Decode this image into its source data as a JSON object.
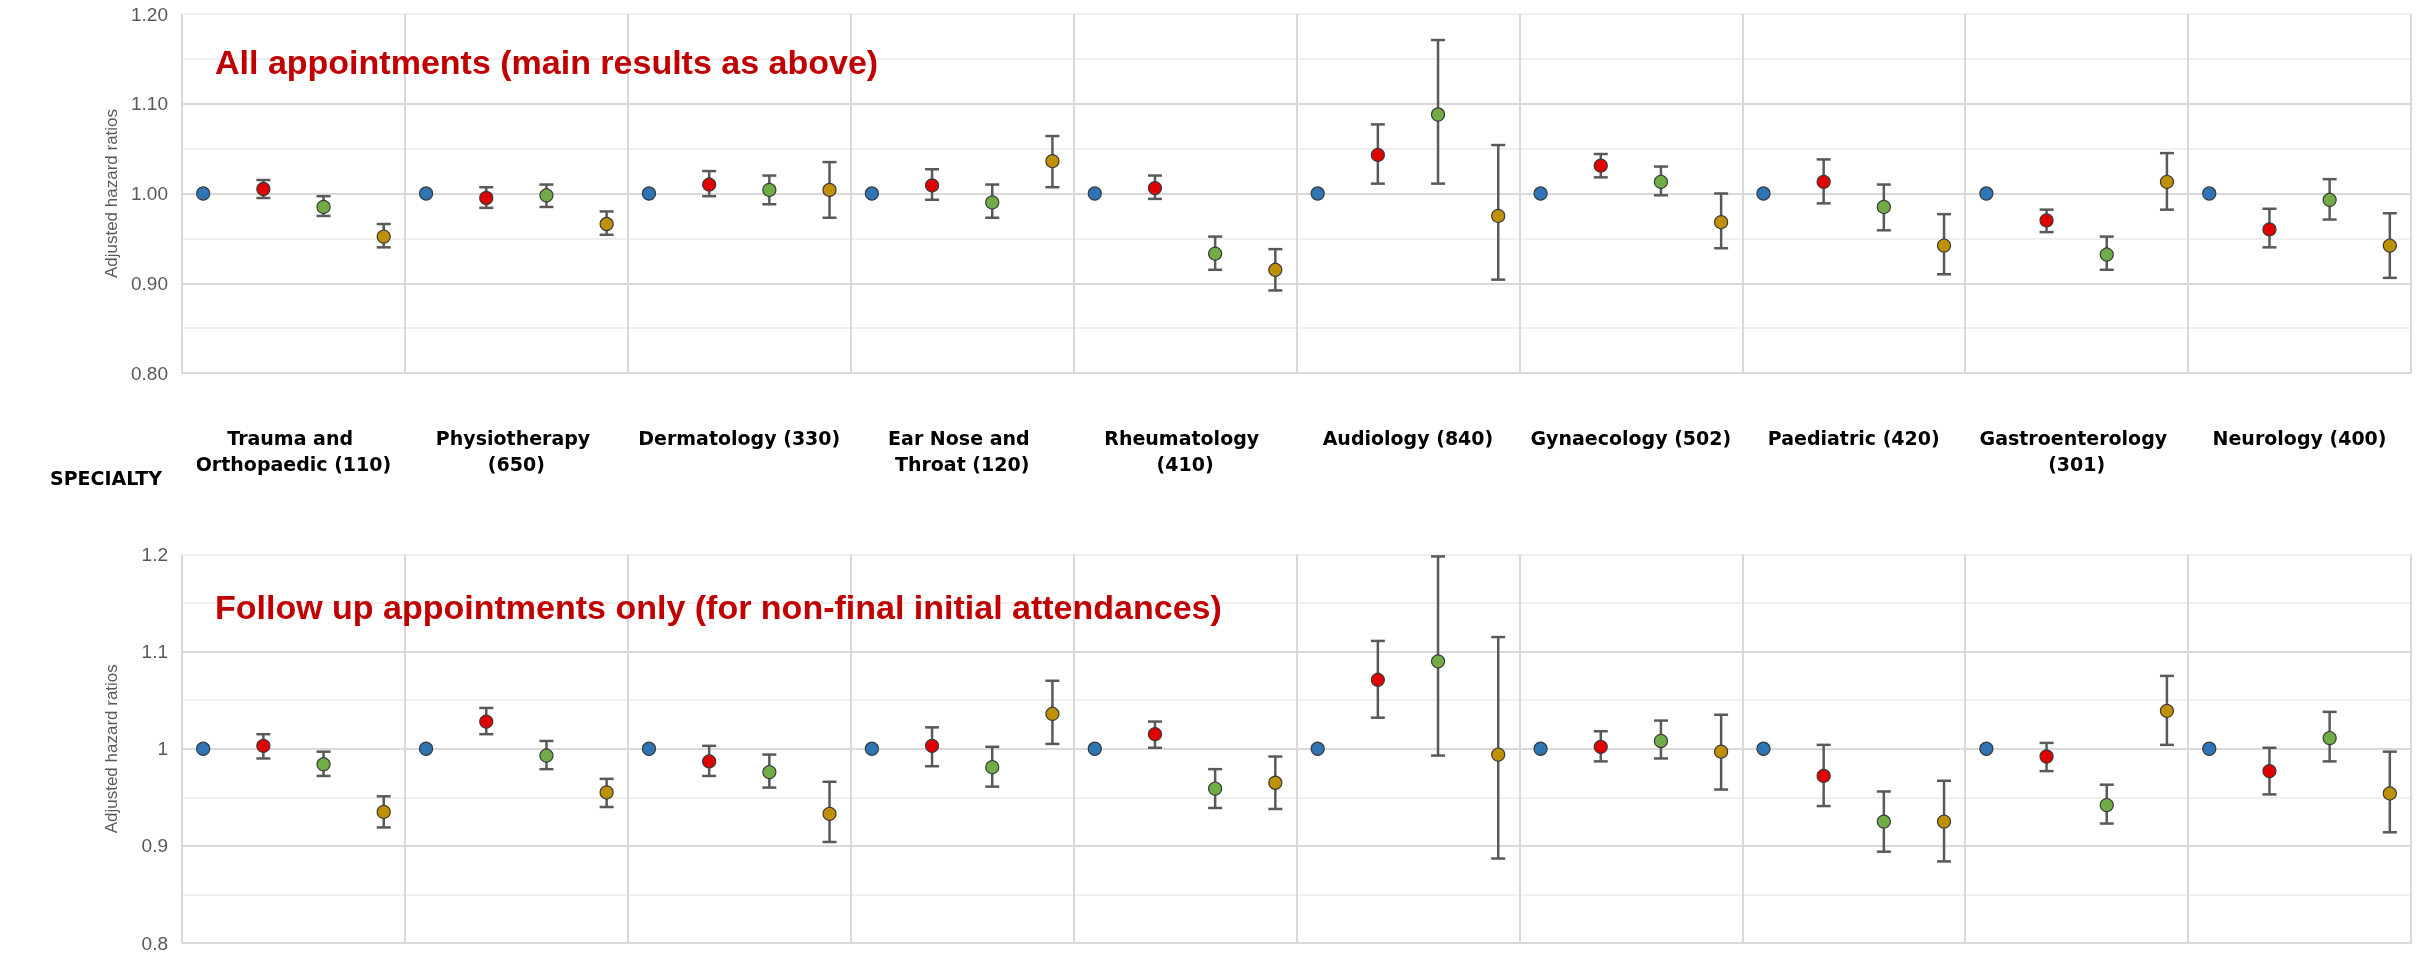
{
  "chart_data": [
    {
      "type": "scatter",
      "title": "All appointments (main results as above)",
      "xlabel": "SPECIALTY",
      "ylabel": "Adjusted hazard ratios",
      "categories": [
        "Trauma and Orthopaedic (110)",
        "Physiotherapy (650)",
        "Dermatology (330)",
        "Ear Nose and Throat (120)",
        "Rheumatology (410)",
        "Audiology (840)",
        "Gynaecology (502)",
        "Paediatric (420)",
        "Gastroenterology (301)",
        "Neurology (400)"
      ],
      "ylim": [
        0.8,
        1.2
      ],
      "yticks": [
        {
          "value": 0.8,
          "label": "0.80"
        },
        {
          "value": 0.85,
          "label": null
        },
        {
          "value": 0.9,
          "label": "0.90"
        },
        {
          "value": 0.95,
          "label": null
        },
        {
          "value": 1.0,
          "label": "1.00"
        },
        {
          "value": 1.05,
          "label": null
        },
        {
          "value": 1.1,
          "label": "1.10"
        },
        {
          "value": 1.15,
          "label": null
        },
        {
          "value": 1.2,
          "label": "1.20"
        }
      ],
      "grid": true,
      "marker": "circle",
      "series": [
        {
          "color": "#2e75b6",
          "values": [
            1,
            1,
            1,
            1,
            1,
            1,
            1,
            1,
            1,
            1
          ]
        },
        {
          "color": "#e00000",
          "values": [
            1.005,
            0.995,
            1.01,
            1.009,
            1.006,
            1.043,
            1.031,
            1.013,
            0.97,
            0.96
          ],
          "errors": [
            [
              0.995,
              1.015
            ],
            [
              0.984,
              1.007
            ],
            [
              0.997,
              1.025
            ],
            [
              0.993,
              1.027
            ],
            [
              0.994,
              1.02
            ],
            [
              1.011,
              1.077
            ],
            [
              1.018,
              1.044
            ],
            [
              0.989,
              1.038
            ],
            [
              0.957,
              0.982
            ],
            [
              0.94,
              0.983
            ]
          ]
        },
        {
          "color": "#70ad47",
          "values": [
            0.985,
            0.998,
            1.004,
            0.99,
            0.933,
            1.088,
            1.013,
            0.985,
            0.932,
            0.993
          ],
          "errors": [
            [
              0.975,
              0.997
            ],
            [
              0.985,
              1.01
            ],
            [
              0.988,
              1.02
            ],
            [
              0.973,
              1.01
            ],
            [
              0.915,
              0.952
            ],
            [
              1.011,
              1.171
            ],
            [
              0.998,
              1.03
            ],
            [
              0.959,
              1.01
            ],
            [
              0.915,
              0.952
            ],
            [
              0.971,
              1.016
            ]
          ]
        },
        {
          "color": "#bf9000",
          "values": [
            0.952,
            0.966,
            1.004,
            1.036,
            0.915,
            0.975,
            0.968,
            0.942,
            1.013,
            0.942
          ],
          "errors": [
            [
              0.94,
              0.966
            ],
            [
              0.954,
              0.98
            ],
            [
              0.973,
              1.035
            ],
            [
              1.007,
              1.064
            ],
            [
              0.892,
              0.938
            ],
            [
              0.904,
              1.054
            ],
            [
              0.939,
              1.0
            ],
            [
              0.91,
              0.977
            ],
            [
              0.982,
              1.045
            ],
            [
              0.906,
              0.978
            ]
          ]
        }
      ]
    },
    {
      "type": "scatter",
      "title": "Follow up appointments only (for non-final initial attendances)",
      "ylabel": "Adjusted hazard ratios",
      "tick_labels": "y",
      "categories": [
        "Trauma and Orthopaedic (110)",
        "Physiotherapy (650)",
        "Dermatology (330)",
        "Ear Nose and Throat (120)",
        "Rheumatology (410)",
        "Audiology (840)",
        "Gynaecology (502)",
        "Paediatric (420)",
        "Gastroenterology (301)",
        "Neurology (400)"
      ],
      "ylim": [
        0.8,
        1.2
      ],
      "yticks": [
        0.8,
        {
          "value": 0.85,
          "label": null
        },
        0.9,
        {
          "value": 0.95,
          "label": null
        },
        1,
        {
          "value": 1.05,
          "label": null
        },
        1.1,
        {
          "value": 1.15,
          "label": null
        },
        1.2
      ],
      "grid": true,
      "marker": "circle",
      "series": [
        {
          "color": "#2e75b6",
          "values": [
            1,
            1,
            1,
            1,
            1,
            1,
            1,
            1,
            1,
            1
          ]
        },
        {
          "color": "#e00000",
          "values": [
            1.003,
            1.028,
            0.987,
            1.003,
            1.015,
            1.071,
            1.002,
            0.972,
            0.992,
            0.977
          ],
          "errors": [
            [
              0.99,
              1.015
            ],
            [
              1.015,
              1.042
            ],
            [
              0.972,
              1.003
            ],
            [
              0.982,
              1.022
            ],
            [
              1.001,
              1.028
            ],
            [
              1.032,
              1.111
            ],
            [
              0.987,
              1.018
            ],
            [
              0.941,
              1.004
            ],
            [
              0.977,
              1.006
            ],
            [
              0.953,
              1.001
            ]
          ]
        },
        {
          "color": "#70ad47",
          "values": [
            0.984,
            0.993,
            0.976,
            0.981,
            0.959,
            1.09,
            1.008,
            0.925,
            0.942,
            1.011
          ],
          "errors": [
            [
              0.972,
              0.997
            ],
            [
              0.979,
              1.008
            ],
            [
              0.96,
              0.994
            ],
            [
              0.961,
              1.002
            ],
            [
              0.939,
              0.979
            ],
            [
              0.993,
              1.198
            ],
            [
              0.99,
              1.029
            ],
            [
              0.894,
              0.956
            ],
            [
              0.923,
              0.963
            ],
            [
              0.987,
              1.038
            ]
          ]
        },
        {
          "color": "#bf9000",
          "values": [
            0.935,
            0.955,
            0.933,
            1.036,
            0.965,
            0.994,
            0.997,
            0.925,
            1.039,
            0.954
          ],
          "errors": [
            [
              0.919,
              0.951
            ],
            [
              0.94,
              0.969
            ],
            [
              0.904,
              0.966
            ],
            [
              1.005,
              1.07
            ],
            [
              0.938,
              0.992
            ],
            [
              0.887,
              1.115
            ],
            [
              0.958,
              1.035
            ],
            [
              0.884,
              0.967
            ],
            [
              1.004,
              1.075
            ],
            [
              0.914,
              0.997
            ]
          ]
        }
      ]
    }
  ]
}
